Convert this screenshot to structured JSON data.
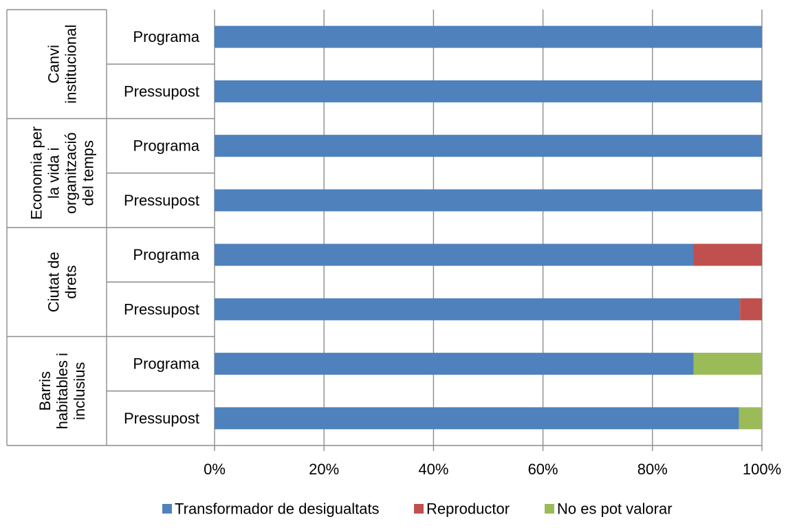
{
  "chart_data": {
    "type": "bar",
    "orientation": "horizontal",
    "stacked": "percent",
    "title": "",
    "xlabel": "",
    "ylabel": "",
    "xlim": [
      0,
      100
    ],
    "x_ticks": [
      "0%",
      "20%",
      "40%",
      "60%",
      "80%",
      "100%"
    ],
    "grid": true,
    "legend_position": "bottom",
    "groups": [
      {
        "label": "Canvi institucional",
        "label_lines": [
          "Canvi",
          "institucional"
        ],
        "categories": [
          "Programa",
          "Pressupost"
        ]
      },
      {
        "label": "Economia per la vida i organització del temps",
        "label_lines": [
          "Economia per",
          "la vida i",
          "organització",
          "del temps"
        ],
        "categories": [
          "Programa",
          "Pressupost"
        ]
      },
      {
        "label": "Ciutat de drets",
        "label_lines": [
          "Ciutat de",
          "drets"
        ],
        "categories": [
          "Programa",
          "Pressupost"
        ]
      },
      {
        "label": "Barris habitables i inclusius",
        "label_lines": [
          "Barris",
          "habitables i",
          "inclusius"
        ],
        "categories": [
          "Programa",
          "Pressupost"
        ]
      }
    ],
    "series": [
      {
        "name": "Transformador de desigualtats",
        "color": "#4F81BD",
        "values": [
          100,
          100,
          100,
          100,
          87.5,
          96,
          87.5,
          95.8
        ]
      },
      {
        "name": "Reproductor",
        "color": "#C0504D",
        "values": [
          0,
          0,
          0,
          0,
          12.5,
          4,
          0,
          0
        ]
      },
      {
        "name": "No es pot valorar",
        "color": "#9BBB59",
        "values": [
          0,
          0,
          0,
          0,
          0,
          0,
          12.5,
          4.2
        ]
      }
    ]
  }
}
